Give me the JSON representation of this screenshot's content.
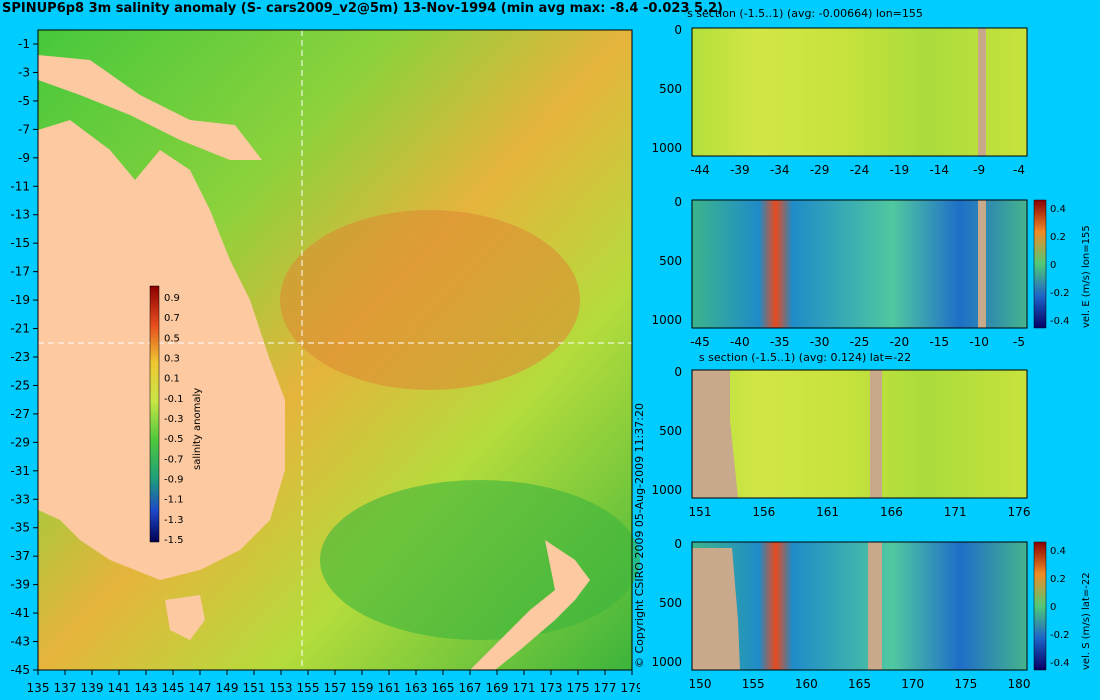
{
  "main_title": "SPINUP6p8 3m salinity anomaly (S- cars2009_v2@5m) 13-Nov-1994 (min avg max: -8.4 -0.023 5.2)",
  "copyright": "© Copyright CSIRO 2009   05-Aug-2009 11:37:20",
  "colors": {
    "background": "#00ccff",
    "land": "#fcc9a0",
    "section_land": "#c9a98b",
    "crosshair": "#ffffff"
  },
  "chart_data": [
    {
      "id": "map",
      "type": "heatmap",
      "title": "SPINUP6p8 3m salinity anomaly (S- cars2009_v2@5m) 13-Nov-1994 (min avg max: -8.4 -0.023 5.2)",
      "xlim": [
        135,
        180
      ],
      "ylim": [
        -45,
        0
      ],
      "x_ticks": [
        "135",
        "137",
        "139",
        "141",
        "143",
        "145",
        "147",
        "149",
        "151",
        "153",
        "155",
        "157",
        "159",
        "161",
        "163",
        "165",
        "167",
        "169",
        "171",
        "173",
        "175",
        "177",
        "179"
      ],
      "y_ticks": [
        "-1",
        "-3",
        "-5",
        "-7",
        "-9",
        "-11",
        "-13",
        "-15",
        "-17",
        "-19",
        "-21",
        "-23",
        "-25",
        "-27",
        "-29",
        "-31",
        "-33",
        "-35",
        "-37",
        "-39",
        "-41",
        "-43",
        "-45"
      ],
      "crosshair": {
        "lon": 155,
        "lat": -22
      },
      "colorbar": {
        "label": "salinity anomaly",
        "range": [
          -1.5,
          0.9
        ],
        "ticks": [
          "0.9",
          "0.7",
          "0.5",
          "0.3",
          "0.1",
          "-0.1",
          "-0.3",
          "-0.5",
          "-0.7",
          "-0.9",
          "-1.1",
          "-1.3",
          "-1.5"
        ]
      }
    },
    {
      "id": "sec1",
      "type": "heatmap",
      "title": "s section (-1.5..1) (avg: -0.00664) lon=155",
      "x_ticks": [
        "-44",
        "-39",
        "-34",
        "-29",
        "-24",
        "-19",
        "-14",
        "-9",
        "-4"
      ],
      "y_ticks": [
        "0",
        "500",
        "1000"
      ],
      "ylim": [
        1050,
        0
      ]
    },
    {
      "id": "sec2",
      "type": "heatmap",
      "title": "",
      "x_ticks": [
        "-45",
        "-40",
        "-35",
        "-30",
        "-25",
        "-20",
        "-15",
        "-10",
        "-5"
      ],
      "y_ticks": [
        "0",
        "500",
        "1000"
      ],
      "ylim": [
        1050,
        0
      ],
      "colorbar": {
        "label": "vel. E (m/s) lon=155",
        "range": [
          -0.4,
          0.4
        ],
        "ticks": [
          "0.4",
          "0.2",
          "0",
          "-0.2",
          "-0.4"
        ]
      }
    },
    {
      "id": "sec3",
      "type": "heatmap",
      "title": "s section (-1.5..1) (avg: 0.124) lat=-22",
      "x_ticks": [
        "151",
        "156",
        "161",
        "166",
        "171",
        "176"
      ],
      "y_ticks": [
        "0",
        "500",
        "1000"
      ],
      "ylim": [
        1050,
        0
      ]
    },
    {
      "id": "sec4",
      "type": "heatmap",
      "title": "",
      "x_ticks": [
        "150",
        "155",
        "160",
        "165",
        "170",
        "175",
        "180"
      ],
      "y_ticks": [
        "0",
        "500",
        "1000"
      ],
      "ylim": [
        1050,
        0
      ],
      "colorbar": {
        "label": "vel. S (m/s) lat=-22",
        "range": [
          -0.4,
          0.4
        ],
        "ticks": [
          "0.4",
          "0.2",
          "0",
          "-0.2",
          "-0.4"
        ]
      }
    }
  ]
}
